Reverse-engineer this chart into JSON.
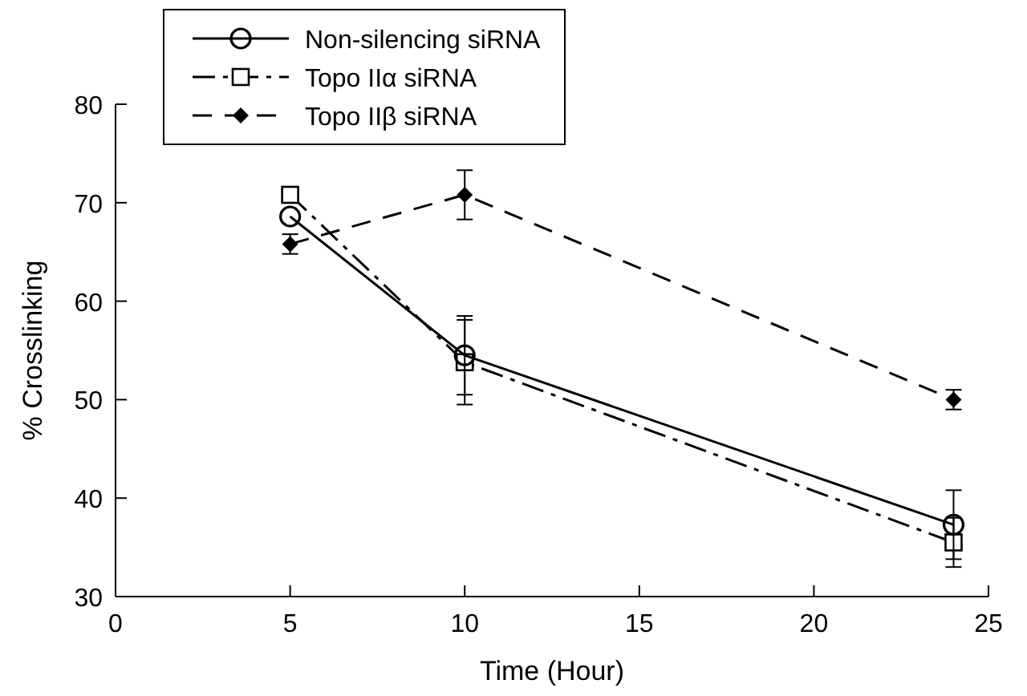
{
  "chart_data": {
    "type": "line",
    "xlabel": "Time (Hour)",
    "ylabel": "% Crosslinking",
    "x": [
      5,
      10,
      24
    ],
    "xlim": [
      0,
      25
    ],
    "xticks": [
      0,
      5,
      10,
      15,
      20,
      25
    ],
    "ylim": [
      30,
      80
    ],
    "yticks": [
      30,
      40,
      50,
      60,
      70,
      80
    ],
    "grid": false,
    "legend": "top left",
    "series": [
      {
        "name": "Non-silencing siRNA",
        "color": "#000000",
        "marker": "circle",
        "line_style": "solid",
        "values": [
          68.6,
          54.5,
          37.3
        ],
        "errors": [
          null,
          4,
          3.5
        ]
      },
      {
        "name": "Topo IIα siRNA",
        "color": "#000000",
        "marker": "square",
        "line_style": "dashed",
        "values": [
          70.8,
          53.8,
          35.5
        ],
        "errors": [
          0.8,
          4.3,
          2.5
        ]
      },
      {
        "name": "Topo IIβ siRNA",
        "color": "#000000",
        "marker": "diamond",
        "line_style": "dashed",
        "values": [
          65.8,
          70.8,
          50
        ],
        "errors": [
          1,
          2.5,
          1
        ]
      }
    ]
  }
}
